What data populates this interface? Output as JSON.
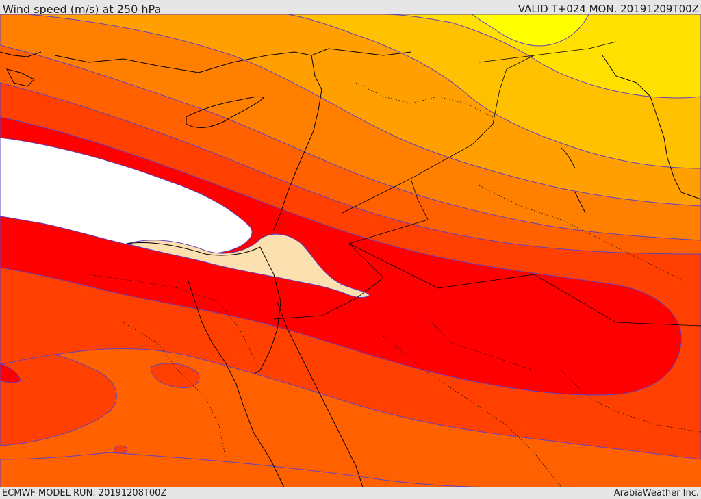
{
  "header": {
    "title": "Wind speed (m/s) at 250 hPa",
    "valid_label": "VALID T+024 MON. 20191209T00Z"
  },
  "footer": {
    "model_run": "ECMWF MODEL RUN: 20191208T00Z",
    "credit": "ArabiaWeather Inc."
  },
  "map": {
    "variable": "wind speed at 250 hPa",
    "band_colors": {
      "weakest_yellow": "#ffff00",
      "yellow": "#ffe000",
      "light_orange": "#ffc000",
      "orange": "#ffa000",
      "dark_orange": "#ff8000",
      "deep_orange": "#ff6000",
      "red_orange": "#ff4000",
      "red": "#ff0000",
      "jet_core_beige": "#fde0b0",
      "jet_core_max": "#ffffff"
    },
    "contour_color": "#6040c0"
  }
}
